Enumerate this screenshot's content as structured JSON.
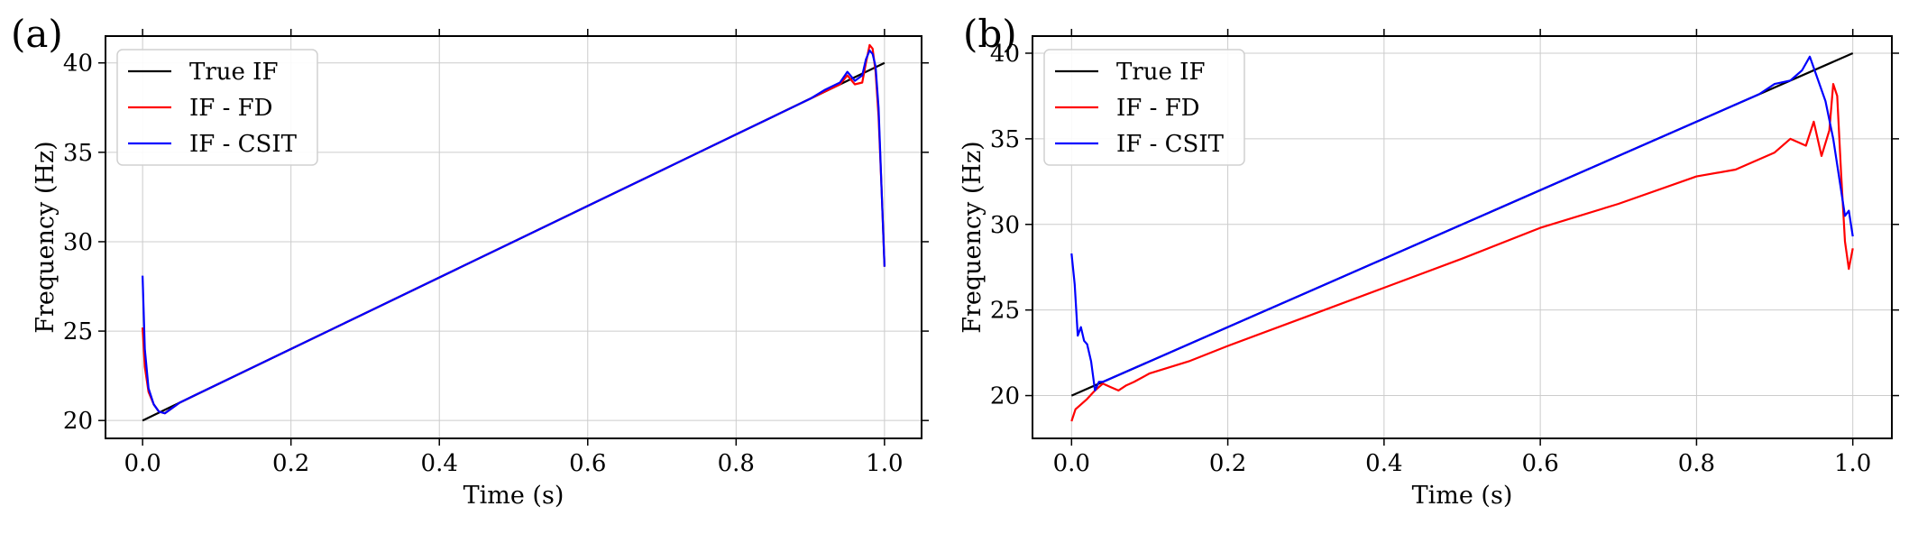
{
  "chart_data": [
    {
      "type": "line",
      "panel_label": "(a)",
      "xlabel": "Time (s)",
      "ylabel": "Frequency (Hz)",
      "xlim": [
        -0.05,
        1.05
      ],
      "ylim": [
        19.0,
        41.5
      ],
      "xticks": [
        0.0,
        0.2,
        0.4,
        0.6,
        0.8,
        1.0
      ],
      "xtick_labels": [
        "0.0",
        "0.2",
        "0.4",
        "0.6",
        "0.8",
        "1.0"
      ],
      "yticks": [
        20,
        25,
        30,
        35,
        40
      ],
      "ytick_labels": [
        "20",
        "25",
        "30",
        "35",
        "40"
      ],
      "grid": true,
      "legend_position": "top-left",
      "series": [
        {
          "name": "True IF",
          "color": "#000000",
          "x": [
            0.0,
            1.0
          ],
          "y": [
            20.0,
            40.0
          ]
        },
        {
          "name": "IF - FD",
          "color": "#ff0000",
          "x": [
            0.0,
            0.003,
            0.008,
            0.015,
            0.022,
            0.03,
            0.04,
            0.05,
            0.07,
            0.1,
            0.2,
            0.3,
            0.4,
            0.5,
            0.6,
            0.7,
            0.8,
            0.85,
            0.9,
            0.92,
            0.94,
            0.95,
            0.96,
            0.97,
            0.975,
            0.98,
            0.984,
            0.988,
            0.992,
            0.996,
            1.0
          ],
          "y": [
            25.2,
            23.0,
            21.6,
            20.9,
            20.5,
            20.4,
            20.7,
            21.0,
            21.4,
            22.0,
            24.0,
            26.0,
            28.0,
            30.0,
            32.0,
            34.0,
            36.0,
            37.0,
            38.0,
            38.4,
            38.8,
            39.3,
            38.8,
            38.9,
            40.0,
            41.0,
            40.8,
            39.5,
            37.0,
            33.0,
            28.6
          ]
        },
        {
          "name": "IF - CSIT",
          "color": "#0000ff",
          "x": [
            0.0,
            0.003,
            0.008,
            0.015,
            0.022,
            0.03,
            0.04,
            0.05,
            0.07,
            0.1,
            0.2,
            0.3,
            0.4,
            0.5,
            0.6,
            0.7,
            0.8,
            0.85,
            0.9,
            0.92,
            0.94,
            0.95,
            0.96,
            0.97,
            0.975,
            0.98,
            0.984,
            0.988,
            0.992,
            0.996,
            1.0
          ],
          "y": [
            28.1,
            24.0,
            21.8,
            20.9,
            20.5,
            20.4,
            20.7,
            21.0,
            21.4,
            22.0,
            24.0,
            26.0,
            28.0,
            30.0,
            32.0,
            34.0,
            36.0,
            37.0,
            38.0,
            38.5,
            38.9,
            39.5,
            39.0,
            39.3,
            40.2,
            40.7,
            40.5,
            39.8,
            37.5,
            33.0,
            28.6
          ]
        }
      ]
    },
    {
      "type": "line",
      "panel_label": "(b)",
      "xlabel": "Time (s)",
      "ylabel": "Frequency (Hz)",
      "xlim": [
        -0.05,
        1.05
      ],
      "ylim": [
        17.5,
        41.0
      ],
      "xticks": [
        0.0,
        0.2,
        0.4,
        0.6,
        0.8,
        1.0
      ],
      "xtick_labels": [
        "0.0",
        "0.2",
        "0.4",
        "0.6",
        "0.8",
        "1.0"
      ],
      "yticks": [
        20,
        25,
        30,
        35,
        40
      ],
      "ytick_labels": [
        "20",
        "25",
        "30",
        "35",
        "40"
      ],
      "grid": true,
      "legend_position": "top-left",
      "series": [
        {
          "name": "True IF",
          "color": "#000000",
          "x": [
            0.0,
            1.0
          ],
          "y": [
            20.0,
            40.0
          ]
        },
        {
          "name": "IF - FD",
          "color": "#ff0000",
          "x": [
            0.0,
            0.005,
            0.01,
            0.02,
            0.03,
            0.04,
            0.05,
            0.06,
            0.07,
            0.08,
            0.1,
            0.15,
            0.2,
            0.3,
            0.4,
            0.5,
            0.6,
            0.7,
            0.8,
            0.85,
            0.9,
            0.92,
            0.94,
            0.95,
            0.96,
            0.97,
            0.975,
            0.98,
            0.985,
            0.99,
            0.995,
            1.0
          ],
          "y": [
            18.5,
            19.2,
            19.4,
            19.8,
            20.3,
            20.7,
            20.5,
            20.3,
            20.6,
            20.8,
            21.3,
            22.0,
            22.9,
            24.6,
            26.3,
            28.0,
            29.8,
            31.2,
            32.8,
            33.2,
            34.2,
            35.0,
            34.6,
            36.0,
            34.0,
            35.5,
            38.2,
            37.5,
            33.0,
            29.0,
            27.4,
            28.6
          ]
        },
        {
          "name": "IF - CSIT",
          "color": "#0000ff",
          "x": [
            0.0,
            0.004,
            0.008,
            0.012,
            0.016,
            0.02,
            0.025,
            0.03,
            0.035,
            0.04,
            0.05,
            0.1,
            0.2,
            0.3,
            0.4,
            0.5,
            0.6,
            0.7,
            0.8,
            0.85,
            0.88,
            0.9,
            0.92,
            0.935,
            0.945,
            0.955,
            0.965,
            0.975,
            0.985,
            0.99,
            0.995,
            1.0
          ],
          "y": [
            28.3,
            26.5,
            23.5,
            24.0,
            23.2,
            23.0,
            22.0,
            20.3,
            20.8,
            20.8,
            21.0,
            22.0,
            24.0,
            26.0,
            28.0,
            30.0,
            32.0,
            34.0,
            36.0,
            37.0,
            37.6,
            38.2,
            38.4,
            39.0,
            39.8,
            38.5,
            37.2,
            35.0,
            32.0,
            30.5,
            30.8,
            29.3
          ]
        }
      ]
    }
  ]
}
